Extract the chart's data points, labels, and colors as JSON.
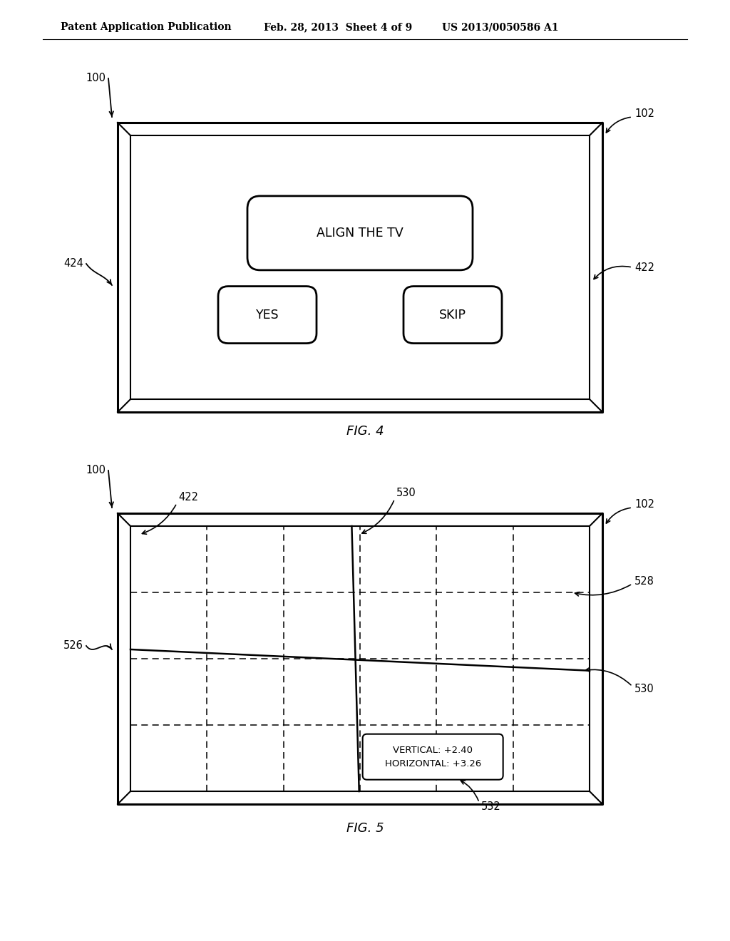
{
  "bg_color": "#ffffff",
  "header_left": "Patent Application Publication",
  "header_mid": "Feb. 28, 2013  Sheet 4 of 9",
  "header_right": "US 2013/0050586 A1",
  "fig4_label": "FIG. 4",
  "fig5_label": "FIG. 5",
  "fig4": {
    "btn_align_text": "ALIGN THE TV",
    "btn_yes_text": "YES",
    "btn_skip_text": "SKIP"
  },
  "fig5": {
    "grid_cols": 6,
    "grid_rows": 4,
    "info_text": "VERTICAL: +2.40\nHORIZONTAL: +3.26"
  }
}
